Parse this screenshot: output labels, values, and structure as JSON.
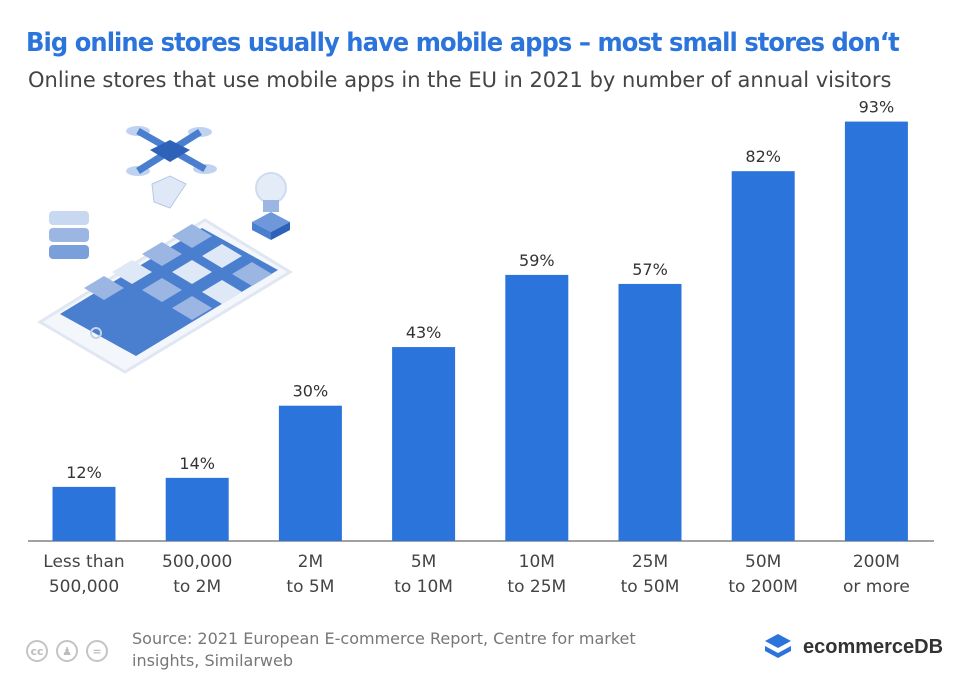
{
  "header": {
    "title": "Big online stores usually have mobile apps – most small stores don‘t",
    "subtitle": "Online stores that use mobile apps in the EU in 2021 by number of annual visitors"
  },
  "chart_data": {
    "type": "bar",
    "categories": [
      [
        "Less than",
        "500,000"
      ],
      [
        "500,000",
        "to 2M"
      ],
      [
        "2M",
        "to 5M"
      ],
      [
        "5M",
        "to 10M"
      ],
      [
        "10M",
        "to 25M"
      ],
      [
        "25M",
        "to 50M"
      ],
      [
        "50M",
        "to 200M"
      ],
      [
        "200M",
        "or more"
      ]
    ],
    "values": [
      12,
      14,
      30,
      43,
      59,
      57,
      82,
      93
    ],
    "value_labels": [
      "12%",
      "14%",
      "30%",
      "43%",
      "59%",
      "57%",
      "82%",
      "93%"
    ],
    "ylim": [
      0,
      100
    ],
    "bar_color": "#2b74dc",
    "grid": false
  },
  "footer": {
    "source": "Source: 2021 European E-commerce Report, Centre for market insights, Similarweb",
    "license_icons": [
      "cc-icon",
      "by-icon",
      "nd-icon"
    ],
    "brand": "ecommerceDB"
  },
  "colors": {
    "title": "#2b74dc",
    "bar": "#2b74dc",
    "subtitle": "#444444",
    "source": "#777777"
  }
}
